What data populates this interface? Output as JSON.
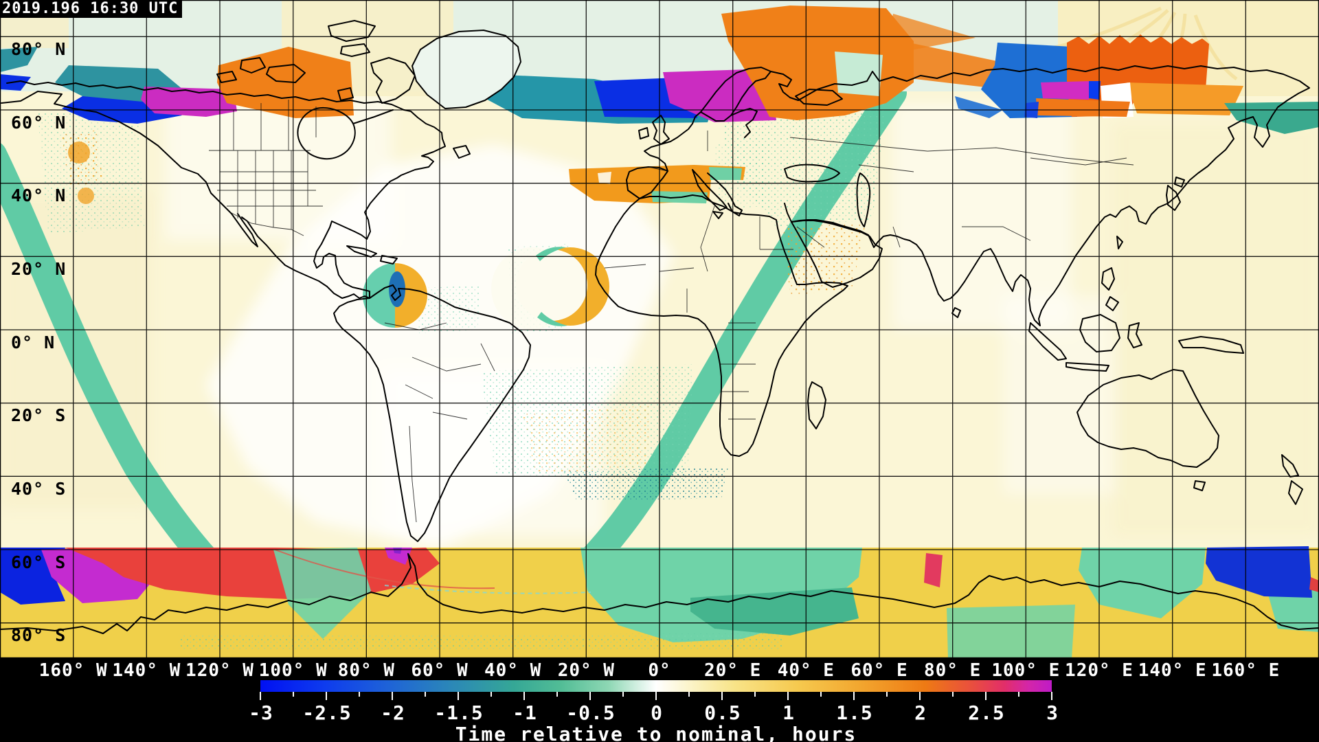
{
  "header": {
    "timestamp": "2019.196 16:30 UTC"
  },
  "map": {
    "lat_labels": [
      "80° N",
      "60° N",
      "40° N",
      "20° N",
      "0° N",
      "20° S",
      "40° S",
      "60° S",
      "80° S"
    ],
    "lon_labels": [
      "160° W",
      "140° W",
      "120° W",
      "100° W",
      "80° W",
      "60° W",
      "40° W",
      "20° W",
      "0°",
      "20° E",
      "40° E",
      "60° E",
      "80° E",
      "100° E",
      "120° E",
      "140° E",
      "160° E"
    ],
    "projection": "equirectangular",
    "graticule_step_degrees": 20
  },
  "colorbar": {
    "tick_labels": [
      "-3",
      "-2.5",
      "-2",
      "-1.5",
      "-1",
      "-0.5",
      "0",
      "0.5",
      "1",
      "1.5",
      "2",
      "2.5",
      "3"
    ],
    "min": -3,
    "max": 3,
    "tick_step": 0.5,
    "minor_tick_step": 0.25,
    "title": "Time relative to nominal, hours",
    "gradient_hex": [
      "#0010F2",
      "#1E62D8",
      "#2B87B8",
      "#35A796",
      "#8ED7B4",
      "#FFFFFF",
      "#F8E387",
      "#F6C94E",
      "#EE7A14",
      "#E94E3F",
      "#E22E69",
      "#BF1BC7"
    ]
  },
  "palette": {
    "map_background": "#FBF6D6",
    "arctic_band": "#E4F1E5",
    "antarctic_band": "#F0D04A",
    "seam_band_mint": "#57C8A2",
    "swath_deep_blue": "#0A2FE4",
    "swath_steel_blue": "#1E6FD4",
    "swath_dark_cyan": "#2596A8",
    "swath_dark_teal": "#2E93A0",
    "swath_magenta": "#CB2CC1",
    "swath_orange": "#F08018",
    "swath_red_orange": "#EC6010",
    "swath_light_orange": "#F59B28",
    "swath_red": "#E9413C",
    "swath_crimson": "#E23A5F",
    "swath_mint": "#6FD3A8",
    "swath_medium_teal": "#45B58E",
    "coastline": "#000000",
    "label_on_map": "#000000",
    "label_on_black": "#FFFFFF"
  }
}
